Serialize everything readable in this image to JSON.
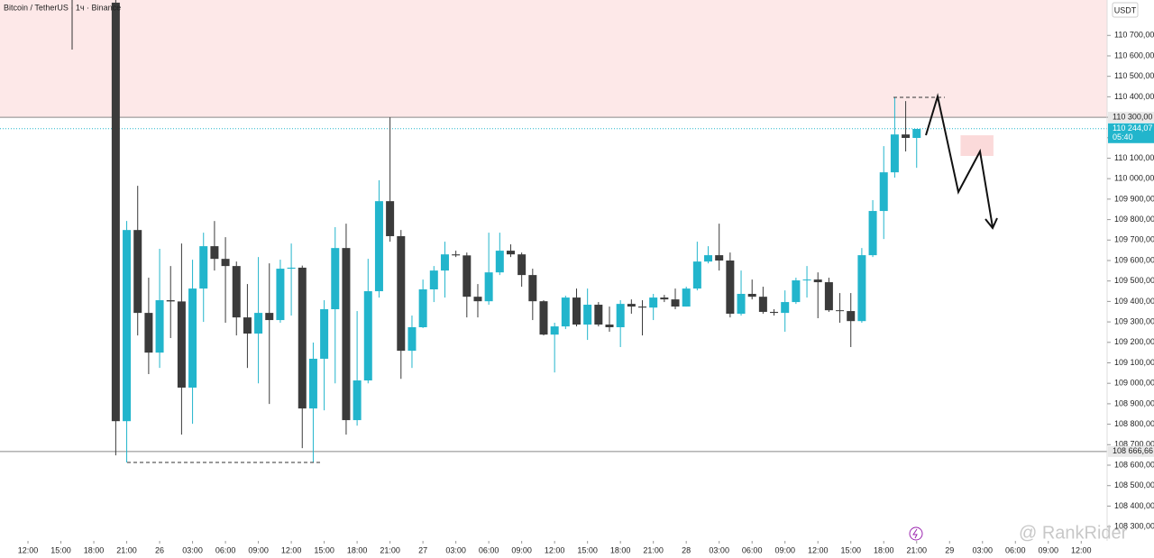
{
  "header": {
    "title": "Bitcoin / TetherUS · 1ч · Binance",
    "currency": "USDT",
    "watermark": "@ RankRider"
  },
  "chart_data": {
    "type": "candlestick",
    "x": [
      8,
      9,
      10,
      11,
      12,
      13,
      14,
      15,
      16,
      17,
      18,
      19,
      20,
      21,
      22,
      23,
      24,
      25,
      26,
      27,
      28,
      29,
      30,
      31,
      32,
      33,
      34,
      35,
      36,
      37,
      38,
      39,
      40,
      41,
      42,
      43,
      44,
      45,
      46,
      47,
      48,
      49,
      50,
      51,
      52,
      53,
      54,
      55,
      56,
      57,
      58,
      59,
      60,
      61,
      62,
      63,
      64,
      65,
      66,
      67,
      68,
      69,
      70,
      71,
      72,
      73,
      74,
      75,
      76,
      77,
      78,
      79,
      80,
      81
    ],
    "open": [
      110860,
      108815,
      109749,
      109344,
      109150,
      109406,
      109400,
      108979,
      109463,
      109670,
      109608,
      109573,
      109322,
      109243,
      109344,
      109309,
      109560,
      109565,
      108877,
      109120,
      109362,
      109661,
      108820,
      109014,
      109450,
      109890,
      109719,
      109159,
      109274,
      109459,
      109551,
      109630,
      109625,
      109423,
      109401,
      109542,
      109648,
      109630,
      109529,
      109401,
      109238,
      109278,
      109419,
      109287,
      109384,
      109287,
      109274,
      109388,
      109375,
      109370,
      109419,
      109410,
      109375,
      109463,
      109595,
      109626,
      109600,
      109340,
      109437,
      109423,
      109349,
      109344,
      109397,
      109503,
      109507,
      109494,
      109357,
      109353,
      109304,
      109626,
      109842,
      110031,
      110216,
      110199
    ],
    "high": [
      110873,
      109793,
      109965,
      109516,
      109657,
      109573,
      109683,
      109604,
      109736,
      109793,
      109714,
      109595,
      109485,
      109617,
      109586,
      109604,
      109683,
      109575,
      109199,
      109406,
      109763,
      109780,
      109353,
      109608,
      109992,
      110300,
      109749,
      109331,
      109507,
      109573,
      109692,
      109648,
      109639,
      109485,
      109736,
      109736,
      109679,
      109639,
      109560,
      109406,
      109296,
      109428,
      109463,
      109463,
      109397,
      109375,
      109406,
      109410,
      109406,
      109437,
      109432,
      109463,
      109472,
      109692,
      109670,
      109780,
      109639,
      109551,
      109507,
      109472,
      109362,
      109454,
      109516,
      109573,
      109542,
      109516,
      109441,
      109441,
      109661,
      109895,
      110159,
      110397,
      110379,
      110243
    ],
    "low": [
      108648,
      108613,
      109234,
      109045,
      109075,
      109221,
      108749,
      108802,
      109300,
      109551,
      109296,
      109234,
      109075,
      109000,
      108899,
      109296,
      109331,
      108683,
      108613,
      108868,
      109000,
      108749,
      108793,
      109000,
      109419,
      109692,
      109022,
      109075,
      109270,
      109397,
      109419,
      109617,
      109322,
      109322,
      109384,
      109529,
      109617,
      109472,
      109309,
      109234,
      109053,
      109265,
      109278,
      109212,
      109278,
      109252,
      109177,
      109340,
      109234,
      109309,
      109397,
      109362,
      109375,
      109454,
      109586,
      109551,
      109322,
      109331,
      109410,
      109340,
      109331,
      109252,
      109388,
      109419,
      109318,
      109349,
      109296,
      109177,
      109296,
      109617,
      109705,
      110005,
      110133,
      110053
    ],
    "close": [
      108815,
      109749,
      109344,
      109150,
      109406,
      109400,
      108979,
      109463,
      109670,
      109608,
      109573,
      109322,
      109243,
      109344,
      109309,
      109560,
      109565,
      108877,
      109120,
      109362,
      109661,
      108820,
      109014,
      109450,
      109890,
      109719,
      109159,
      109274,
      109459,
      109551,
      109630,
      109625,
      109423,
      109401,
      109542,
      109648,
      109630,
      109529,
      109401,
      109238,
      109278,
      109419,
      109287,
      109384,
      109287,
      109274,
      109388,
      109375,
      109370,
      109419,
      109410,
      109375,
      109463,
      109595,
      109626,
      109600,
      109340,
      109437,
      109423,
      109349,
      109344,
      109397,
      109503,
      109507,
      109494,
      109357,
      109353,
      109304,
      109626,
      109842,
      110031,
      110216,
      110199,
      110243
    ],
    "up_color": "#22b5cc",
    "down_color": "#3b3b3b",
    "xlim": [
      -2.55,
      98.36
    ],
    "ylim": [
      108230,
      110873
    ],
    "xticks": [
      {
        "value": 0,
        "label": "12:00"
      },
      {
        "value": 3,
        "label": "15:00"
      },
      {
        "value": 6,
        "label": "18:00"
      },
      {
        "value": 9,
        "label": "21:00"
      },
      {
        "value": 12,
        "label": "26"
      },
      {
        "value": 15,
        "label": "03:00"
      },
      {
        "value": 18,
        "label": "06:00"
      },
      {
        "value": 21,
        "label": "09:00"
      },
      {
        "value": 24,
        "label": "12:00"
      },
      {
        "value": 27,
        "label": "15:00"
      },
      {
        "value": 30,
        "label": "18:00"
      },
      {
        "value": 33,
        "label": "21:00"
      },
      {
        "value": 36,
        "label": "27"
      },
      {
        "value": 39,
        "label": "03:00"
      },
      {
        "value": 42,
        "label": "06:00"
      },
      {
        "value": 45,
        "label": "09:00"
      },
      {
        "value": 48,
        "label": "12:00"
      },
      {
        "value": 51,
        "label": "15:00"
      },
      {
        "value": 54,
        "label": "18:00"
      },
      {
        "value": 57,
        "label": "21:00"
      },
      {
        "value": 60,
        "label": "28"
      },
      {
        "value": 63,
        "label": "03:00"
      },
      {
        "value": 66,
        "label": "06:00"
      },
      {
        "value": 69,
        "label": "09:00"
      },
      {
        "value": 72,
        "label": "12:00"
      },
      {
        "value": 75,
        "label": "15:00"
      },
      {
        "value": 78,
        "label": "18:00"
      },
      {
        "value": 81,
        "label": "21:00"
      },
      {
        "value": 84,
        "label": "29"
      },
      {
        "value": 87,
        "label": "03:00"
      },
      {
        "value": 90,
        "label": "06:00"
      },
      {
        "value": 93,
        "label": "09:00"
      },
      {
        "value": 96,
        "label": "12:00"
      }
    ],
    "yticks": [
      {
        "value": 110700,
        "label": "110 700,00"
      },
      {
        "value": 110600,
        "label": "110 600,00"
      },
      {
        "value": 110500,
        "label": "110 500,00"
      },
      {
        "value": 110400,
        "label": "110 400,00"
      },
      {
        "value": 110300,
        "label": "110 300,00"
      },
      {
        "value": 110200,
        "label": "110 200,00"
      },
      {
        "value": 110100,
        "label": "110 100,00"
      },
      {
        "value": 110000,
        "label": "110 000,00"
      },
      {
        "value": 109900,
        "label": "109 900,00"
      },
      {
        "value": 109800,
        "label": "109 800,00"
      },
      {
        "value": 109700,
        "label": "109 700,00"
      },
      {
        "value": 109600,
        "label": "109 600,00"
      },
      {
        "value": 109500,
        "label": "109 500,00"
      },
      {
        "value": 109400,
        "label": "109 400,00"
      },
      {
        "value": 109300,
        "label": "109 300,00"
      },
      {
        "value": 109200,
        "label": "109 200,00"
      },
      {
        "value": 109100,
        "label": "109 100,00"
      },
      {
        "value": 109000,
        "label": "109 000,00"
      },
      {
        "value": 108900,
        "label": "108 900,00"
      },
      {
        "value": 108800,
        "label": "108 800,00"
      },
      {
        "value": 108700,
        "label": "108 700,00"
      },
      {
        "value": 108600,
        "label": "108 600,00"
      },
      {
        "value": 108500,
        "label": "108 500,00"
      },
      {
        "value": 108400,
        "label": "108 400,00"
      },
      {
        "value": 108300,
        "label": "108 300,00"
      }
    ],
    "levels": [
      {
        "value": 110300,
        "label": "110 300,00"
      },
      {
        "value": 108666.66,
        "label": "108 666,66"
      }
    ],
    "last_price": {
      "value": 110244.07,
      "label": "110 244,07",
      "countdown": "05:40"
    },
    "zones": [
      {
        "y": [
          110300,
          110873
        ],
        "color": "#fde8e8"
      },
      {
        "x": [
          85,
          88
        ],
        "y": [
          110111,
          110212
        ],
        "color": "#fbdada"
      }
    ]
  }
}
